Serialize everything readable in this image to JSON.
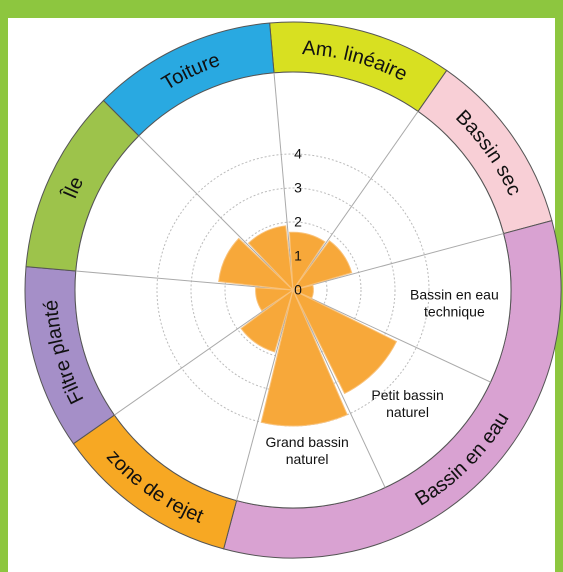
{
  "chart_data": {
    "type": "polar_bar",
    "categories": [
      null,
      null,
      "Bassin en eau\ntechnique",
      "Petit bassin\nnaturel",
      "Grand bassin\nnaturel",
      null,
      null,
      null,
      null
    ],
    "values": [
      1.7,
      1.8,
      0.6,
      3.4,
      4.0,
      1.9,
      1.1,
      2.2,
      1.9
    ],
    "color": "#f7a83a",
    "rlim": [
      0,
      4
    ],
    "rticks": [
      0,
      1,
      2,
      3,
      4
    ],
    "grid": true,
    "start_angle": -5,
    "groups": [
      {
        "name": "Am. linéaire",
        "color": "#d8e021",
        "span": 1
      },
      {
        "name": "Bassin sec",
        "color": "#f8cfd6",
        "span": 1
      },
      {
        "name": "Bassin en eau",
        "color": "#d9a2d2",
        "span": 3
      },
      {
        "name": "zone de rejet",
        "color": "#f7a823",
        "span": 1
      },
      {
        "name": "Filtre planté",
        "color": "#a58fc8",
        "span": 1
      },
      {
        "name": "Île",
        "color": "#9dc34b",
        "span": 1
      },
      {
        "name": "Toiture",
        "color": "#29a9e1",
        "span": 1
      }
    ]
  }
}
